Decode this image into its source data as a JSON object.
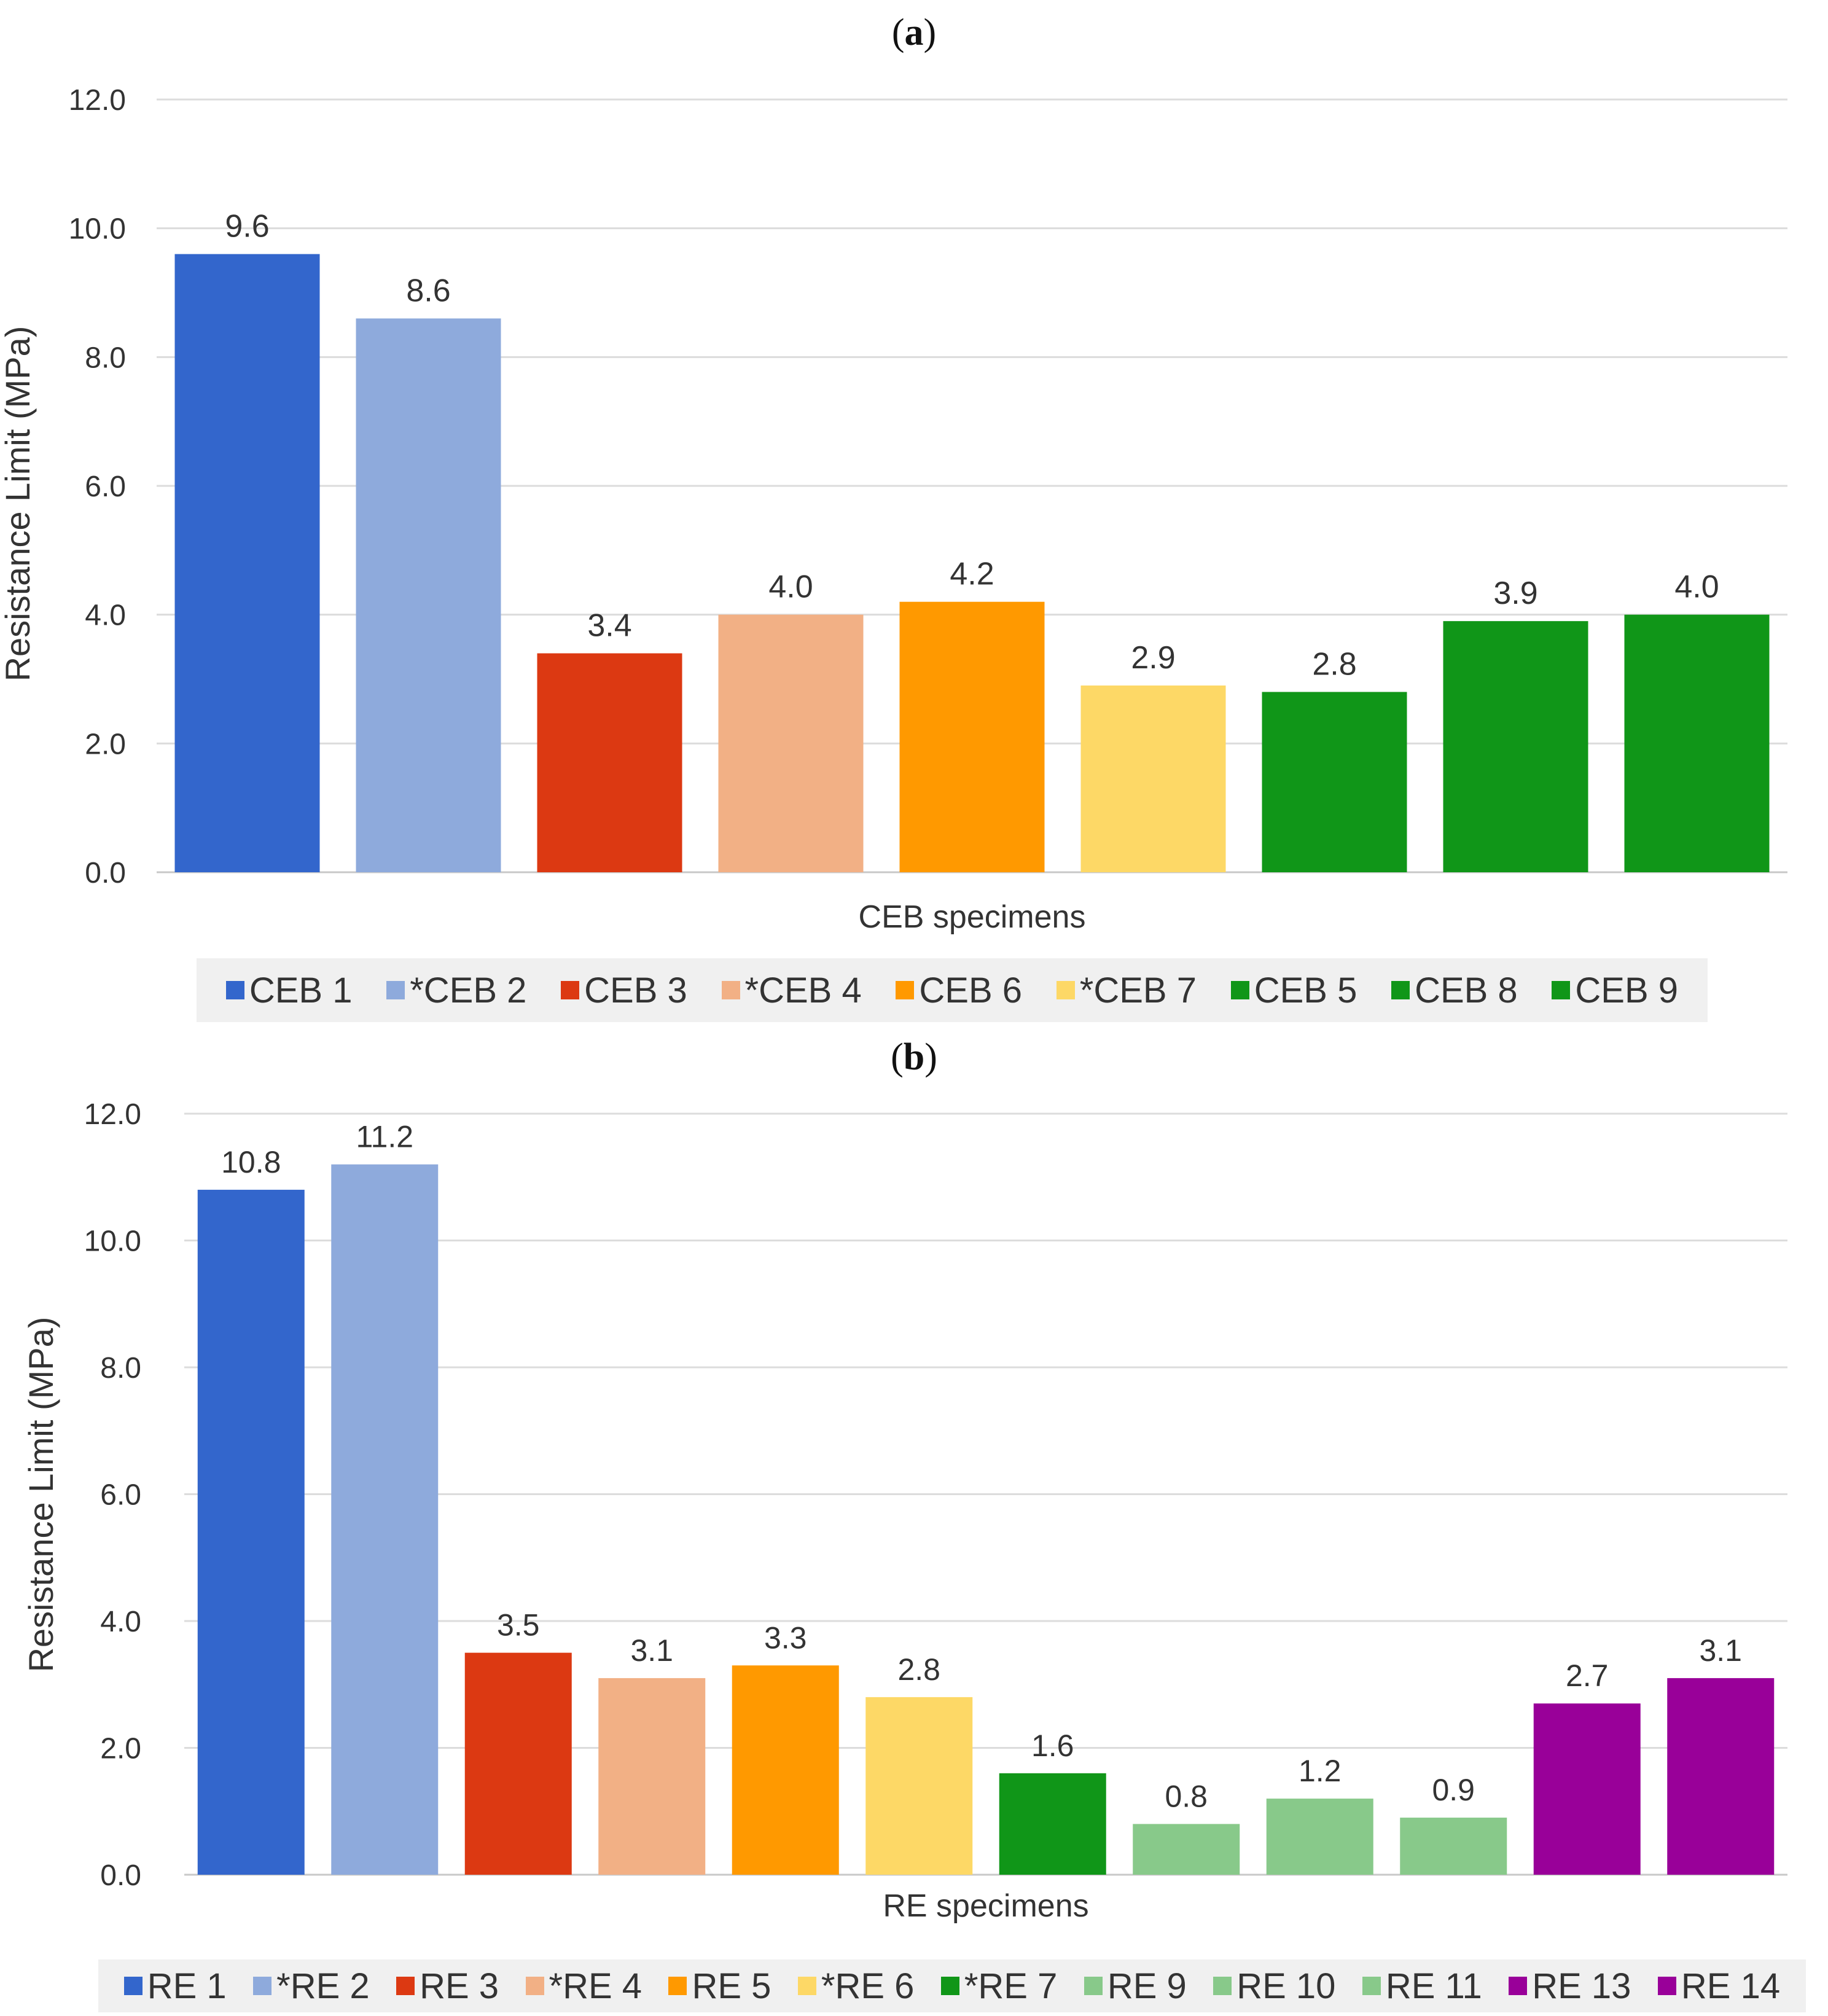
{
  "panels": [
    {
      "label": "a"
    },
    {
      "label": "b"
    }
  ],
  "chart_data": [
    {
      "type": "bar",
      "panel": "a",
      "title": "",
      "xlabel": "CEB specimens",
      "ylabel": "Resistance Limit (MPa)",
      "ylim": [
        0,
        12
      ],
      "yticks": [
        "0.0",
        "2.0",
        "4.0",
        "6.0",
        "8.0",
        "10.0",
        "12.0"
      ],
      "grid": true,
      "legend_position": "bottom",
      "categories": [
        "CEB 1",
        "*CEB 2",
        "CEB 3",
        "*CEB 4",
        "CEB 6",
        "*CEB 7",
        "CEB 5",
        "CEB 8",
        "CEB 9"
      ],
      "values": [
        9.6,
        8.6,
        3.4,
        4.0,
        4.2,
        2.9,
        2.8,
        3.9,
        4.0
      ],
      "value_labels": [
        "9.6",
        "8.6",
        "3.4",
        "4.0",
        "4.2",
        "2.9",
        "2.8",
        "3.9",
        "4.0"
      ],
      "colors": [
        "#3366cc",
        "#8eaadc",
        "#dc3912",
        "#f2b085",
        "#ff9900",
        "#fdd866",
        "#109618",
        "#109618",
        "#109618"
      ]
    },
    {
      "type": "bar",
      "panel": "b",
      "title": "",
      "xlabel": "RE specimens",
      "ylabel": "Resistance Limit (MPa)",
      "ylim": [
        0,
        12
      ],
      "yticks": [
        "0.0",
        "2.0",
        "4.0",
        "6.0",
        "8.0",
        "10.0",
        "12.0"
      ],
      "grid": true,
      "legend_position": "bottom",
      "categories": [
        "RE 1",
        "*RE 2",
        "RE 3",
        "*RE 4",
        "RE 5",
        "*RE 6",
        "*RE 7",
        "RE 9",
        "RE 10",
        "RE 11",
        "RE 13",
        "RE 14"
      ],
      "values": [
        10.8,
        11.2,
        3.5,
        3.1,
        3.3,
        2.8,
        1.6,
        0.8,
        1.2,
        0.9,
        2.7,
        3.1
      ],
      "value_labels": [
        "10.8",
        "11.2",
        "3.5",
        "3.1",
        "3.3",
        "2.8",
        "1.6",
        "0.8",
        "1.2",
        "0.9",
        "2.7",
        "3.1"
      ],
      "colors": [
        "#3366cc",
        "#8eaadc",
        "#dc3912",
        "#f2b085",
        "#ff9900",
        "#fdd866",
        "#109618",
        "#88c98a",
        "#88c98a",
        "#88c98a",
        "#990099",
        "#990099"
      ]
    }
  ]
}
